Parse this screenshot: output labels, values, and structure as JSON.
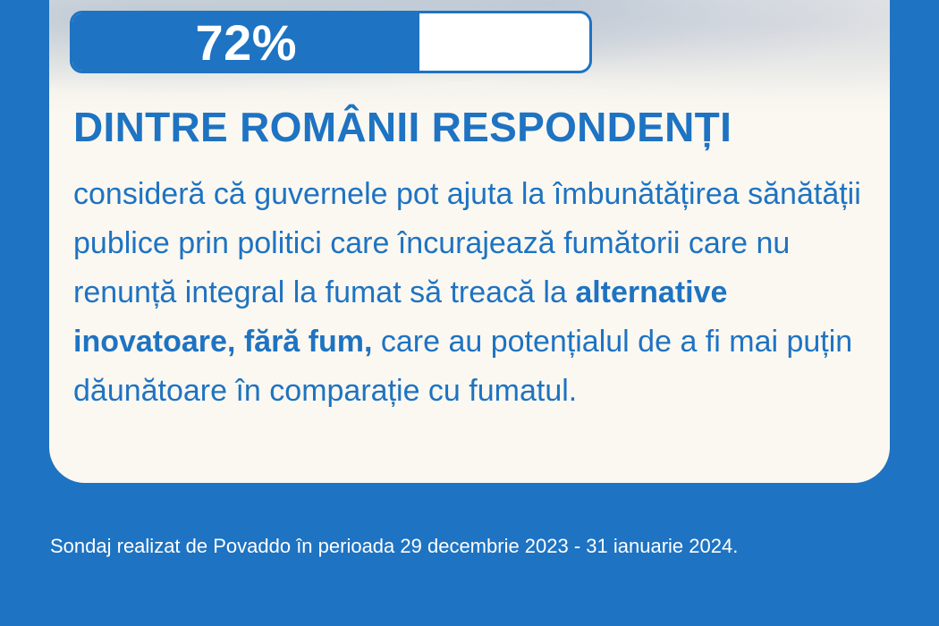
{
  "stat": {
    "percent_label": "72%",
    "percent_value": 72
  },
  "headline": "DINTRE ROMÂNII RESPONDENȚI",
  "body": {
    "part1": "consideră că guvernele pot ajuta la îmbunătățirea sănătății publice prin politici care încurajează fumătorii care nu renunță integral la fumat să treacă la ",
    "highlight": "alternative inovatoare, fără fum,",
    "part2": " care au potențialul de a fi mai puțin dăunătoare în comparație cu fumatul."
  },
  "footnote": "Sondaj realizat de Povaddo în perioada 29 decembrie 2023 - 31 ianuarie 2024.",
  "colors": {
    "brand_blue": "#1e73c2",
    "card_background": "#fbf8f1",
    "text_on_blue": "#ffffff"
  }
}
